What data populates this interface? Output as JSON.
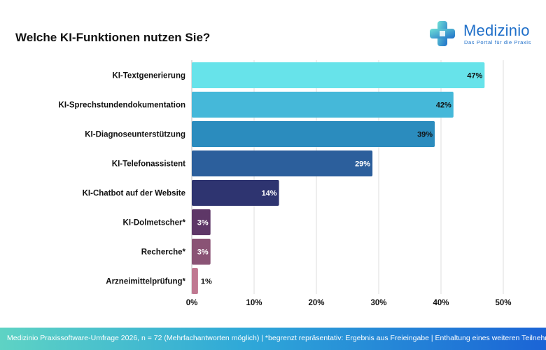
{
  "title": "Welche KI-Funktionen nutzen Sie?",
  "logo": {
    "name": "Medizinio",
    "tagline": "Das Portal für die Praxis",
    "color": "#1f6fc9"
  },
  "footer": {
    "text": "Medizinio Praxissoftware-Umfrage 2026, n = 72 (Mehrfachantworten möglich) | *begrenzt repräsentativ: Ergebnis aus Freieingabe | Enthaltung eines weiteren Teilnehmers"
  },
  "chart_data": {
    "type": "bar",
    "orientation": "horizontal",
    "categories": [
      "KI-Textgenerierung",
      "KI-Sprechstundendokumentation",
      "KI-Diagnoseunterstützung",
      "KI-Telefonassistent",
      "KI-Chatbot auf der Website",
      "KI-Dolmetscher*",
      "Recherche*",
      "Arzneimittelprüfung*"
    ],
    "values": [
      47,
      42,
      39,
      29,
      14,
      3,
      3,
      1
    ],
    "value_labels": [
      "47%",
      "42%",
      "39%",
      "29%",
      "14%",
      "3%",
      "3%",
      "1%"
    ],
    "colors": [
      "#67e3ea",
      "#45b8d9",
      "#2b8cbe",
      "#2c5f9c",
      "#2e3470",
      "#5e3767",
      "#8a5375",
      "#c07891"
    ],
    "xlim": [
      0,
      50
    ],
    "xticks": [
      "0%",
      "10%",
      "20%",
      "30%",
      "40%",
      "50%"
    ],
    "grid": true
  }
}
